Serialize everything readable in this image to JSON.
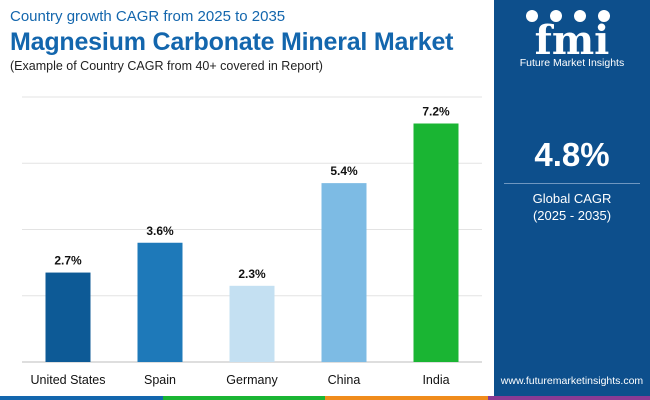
{
  "header": {
    "subtitle_top": "Country growth CAGR from 2025 to 2035",
    "title": "Magnesium Carbonate Mineral Market",
    "note": "(Example of Country CAGR from 40+ covered in Report)"
  },
  "sidebar": {
    "logo_text": "fmi",
    "logo_caption": "Future Market Insights",
    "cagr_value": "4.8%",
    "cagr_label": "Global CAGR",
    "cagr_period": "(2025 - 2035)",
    "website": "www.futuremarketinsights.com"
  },
  "chart_data": {
    "type": "bar",
    "categories": [
      "United States",
      "Spain",
      "Germany",
      "China",
      "India"
    ],
    "values": [
      2.7,
      3.6,
      2.3,
      5.4,
      7.2
    ],
    "value_labels": [
      "2.7%",
      "3.6%",
      "2.3%",
      "5.4%",
      "7.2%"
    ],
    "colors": [
      "#0d5a96",
      "#1e79b9",
      "#c4e0f2",
      "#7dbbe4",
      "#1ab533"
    ],
    "ylim": [
      0,
      8
    ],
    "grid": true,
    "ylabel": "",
    "xlabel": ""
  },
  "colors": {
    "brand_blue": "#0d4f8c",
    "title_blue": "#1366ad",
    "stripe": [
      "#1366ad",
      "#1ab533",
      "#f08c1c",
      "#8a3b94"
    ]
  }
}
